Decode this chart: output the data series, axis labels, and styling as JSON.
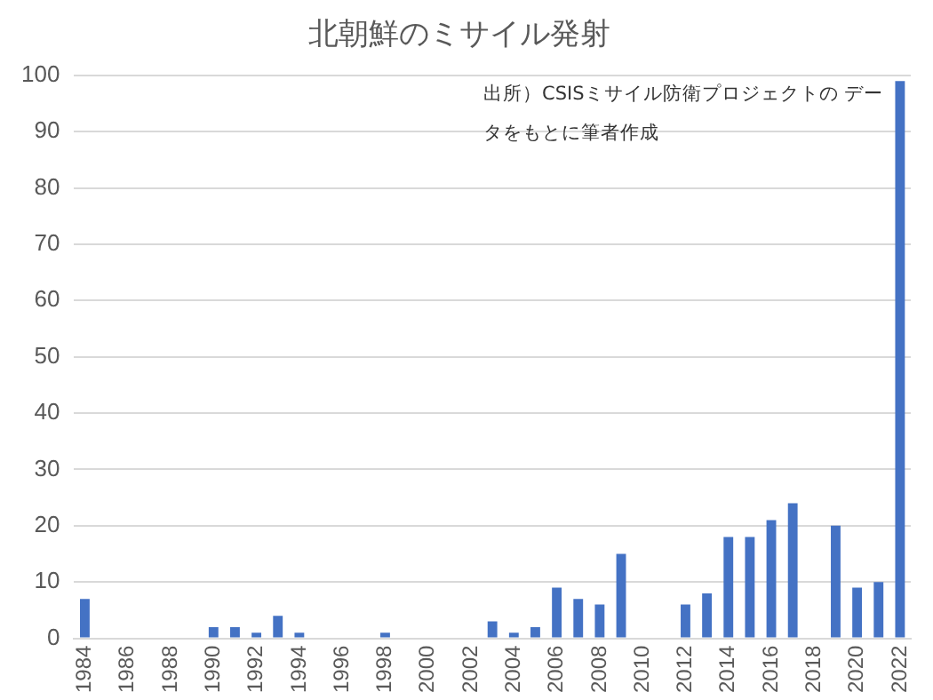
{
  "chart_data": {
    "type": "bar",
    "title": "北朝鮮のミサイル発射",
    "categories": [
      "1984",
      null,
      "1986",
      null,
      "1988",
      null,
      "1990",
      null,
      "1992",
      null,
      "1994",
      null,
      "1996",
      null,
      "1998",
      null,
      "2000",
      null,
      "2002",
      null,
      "2004",
      null,
      "2006",
      null,
      "2008",
      null,
      "2010",
      null,
      "2012",
      null,
      "2014",
      null,
      "2016",
      null,
      "2018",
      null,
      "2020",
      null,
      "2022"
    ],
    "values": [
      7,
      0,
      0,
      0,
      0,
      0,
      2,
      2,
      1,
      4,
      1,
      0,
      0,
      0,
      1,
      0,
      0,
      0,
      0,
      3,
      1,
      2,
      9,
      7,
      6,
      15,
      0,
      0,
      6,
      8,
      18,
      18,
      21,
      24,
      0,
      20,
      9,
      10,
      99
    ],
    "color": "#4472c4",
    "ylim": [
      0,
      100
    ],
    "yticks": [
      0,
      10,
      20,
      30,
      40,
      50,
      60,
      70,
      80,
      90,
      100
    ],
    "grid": "y",
    "annotations": [
      "出所）CSISミサイル防衛プロジェクトの データをもとに筆者作成"
    ]
  }
}
